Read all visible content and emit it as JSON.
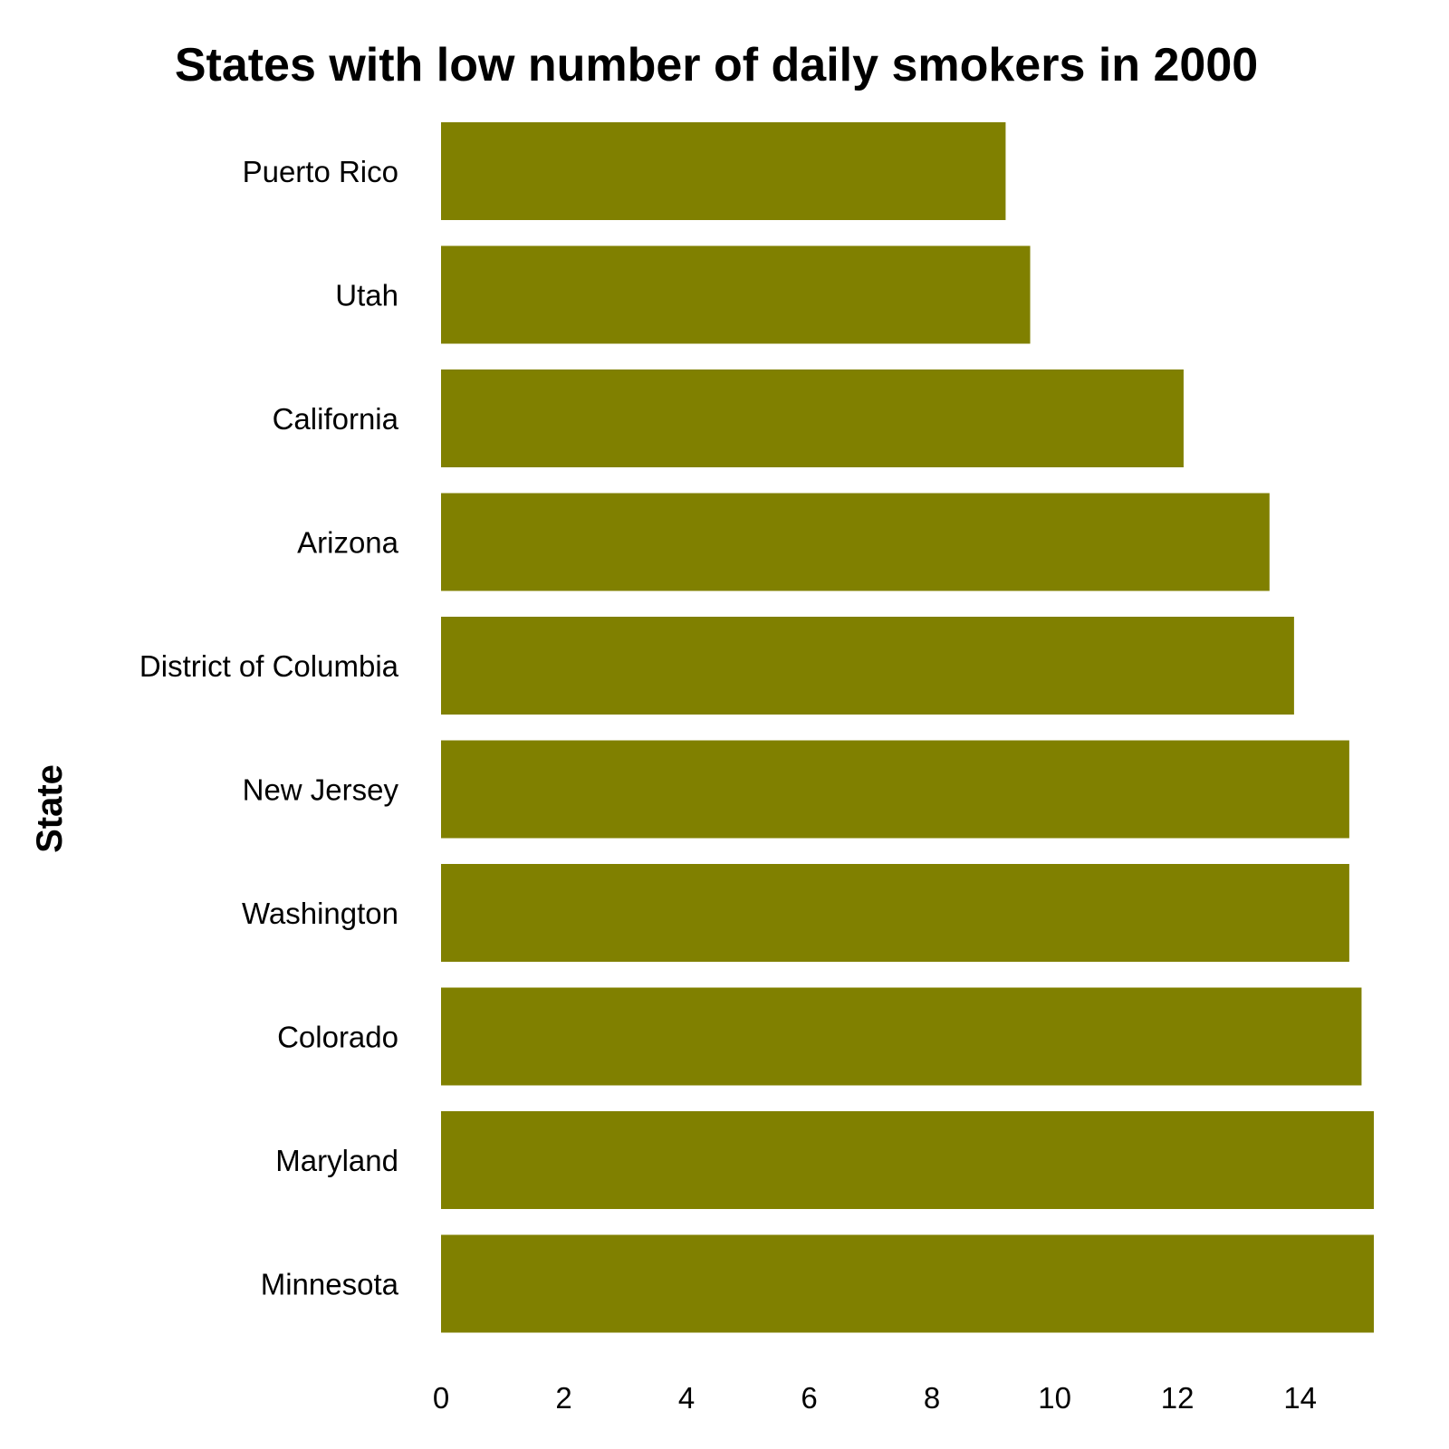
{
  "chart_data": {
    "type": "bar",
    "orientation": "horizontal",
    "title": "States with low number of daily smokers in 2000",
    "xlabel": "",
    "ylabel": "State",
    "categories": [
      "Puerto Rico",
      "Utah",
      "California",
      "Arizona",
      "District of Columbia",
      "New Jersey",
      "Washington",
      "Colorado",
      "Maryland",
      "Minnesota"
    ],
    "values": [
      9.2,
      9.6,
      12.1,
      13.5,
      13.9,
      14.8,
      14.8,
      15.0,
      15.2,
      15.2
    ],
    "xlim": [
      0,
      15.2
    ],
    "xticks": [
      0,
      2,
      4,
      6,
      8,
      10,
      12,
      14
    ],
    "grid": false,
    "legend": "none",
    "bar_color": "#808000"
  }
}
